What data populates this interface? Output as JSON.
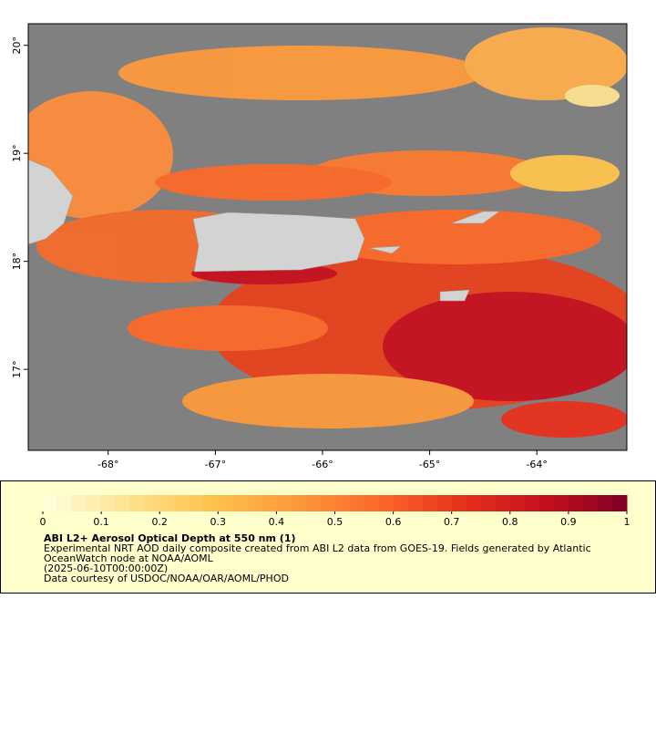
{
  "map": {
    "xlim": [
      -68.746,
      -63.16
    ],
    "ylim": [
      16.25,
      20.2
    ],
    "xticks": [
      {
        "value": -68,
        "label": "-68°"
      },
      {
        "value": -67,
        "label": "-67°"
      },
      {
        "value": -66,
        "label": "-66°"
      },
      {
        "value": -65,
        "label": "-65°"
      },
      {
        "value": -64,
        "label": "-64°"
      }
    ],
    "yticks": [
      {
        "value": 17,
        "label": "17°"
      },
      {
        "value": 18,
        "label": "18°"
      },
      {
        "value": 19,
        "label": "19°"
      },
      {
        "value": 20,
        "label": "20°"
      }
    ]
  },
  "colorbar": {
    "lim": [
      0,
      1
    ],
    "ticks": [
      0,
      0.1,
      0.2,
      0.3,
      0.4,
      0.5,
      0.6,
      0.7,
      0.8,
      0.9,
      1
    ],
    "colormap": [
      "#ffffe0",
      "#fee391",
      "#fec44f",
      "#fd9a3c",
      "#fc6a2a",
      "#e8321c",
      "#c8101e",
      "#800026"
    ]
  },
  "legend": {
    "title": "ABI L2+ Aerosol Optical Depth at 550 nm (1)",
    "lines": [
      "Experimental NRT AOD daily composite created from ABI L2 data from GOES-19. Fields generated by Atlantic",
      "OceanWatch node at NOAA/AOML",
      "(2025-06-10T00:00:00Z)",
      "Data courtesy of USDOC/NOAA/OAR/AOML/PHOD"
    ]
  }
}
